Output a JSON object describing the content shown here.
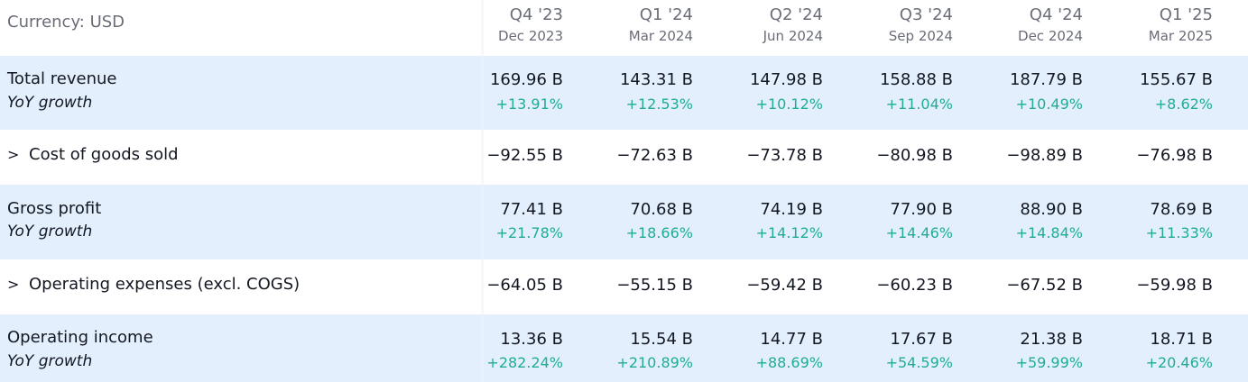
{
  "header": {
    "currency_label": "Currency: USD",
    "columns": [
      {
        "quarter": "Q4 '23",
        "date": "Dec 2023"
      },
      {
        "quarter": "Q1 '24",
        "date": "Mar 2024"
      },
      {
        "quarter": "Q2 '24",
        "date": "Jun 2024"
      },
      {
        "quarter": "Q3 '24",
        "date": "Sep 2024"
      },
      {
        "quarter": "Q4 '24",
        "date": "Dec 2024"
      },
      {
        "quarter": "Q1 '25",
        "date": "Mar 2025"
      }
    ]
  },
  "rows": {
    "total_revenue": {
      "label": "Total revenue",
      "sub_label": "YoY growth",
      "values": [
        "169.96 B",
        "143.31 B",
        "147.98 B",
        "158.88 B",
        "187.79 B",
        "155.67 B"
      ],
      "growth": [
        "+13.91%",
        "+12.53%",
        "+10.12%",
        "+11.04%",
        "+10.49%",
        "+8.62%"
      ]
    },
    "cogs": {
      "chevron": ">",
      "label": "Cost of goods sold",
      "values": [
        "−92.55 B",
        "−72.63 B",
        "−73.78 B",
        "−80.98 B",
        "−98.89 B",
        "−76.98 B"
      ]
    },
    "gross_profit": {
      "label": "Gross profit",
      "sub_label": "YoY growth",
      "values": [
        "77.41 B",
        "70.68 B",
        "74.19 B",
        "77.90 B",
        "88.90 B",
        "78.69 B"
      ],
      "growth": [
        "+21.78%",
        "+18.66%",
        "+14.12%",
        "+14.46%",
        "+14.84%",
        "+11.33%"
      ]
    },
    "opex": {
      "chevron": ">",
      "label": "Operating expenses (excl. COGS)",
      "values": [
        "−64.05 B",
        "−55.15 B",
        "−59.42 B",
        "−60.23 B",
        "−67.52 B",
        "−59.98 B"
      ]
    },
    "operating_income": {
      "label": "Operating income",
      "sub_label": "YoY growth",
      "values": [
        "13.36 B",
        "15.54 B",
        "14.77 B",
        "17.67 B",
        "21.38 B",
        "18.71 B"
      ],
      "growth": [
        "+282.24%",
        "+210.89%",
        "+88.69%",
        "+54.59%",
        "+59.99%",
        "+20.46%"
      ]
    }
  },
  "colors": {
    "highlight_row": "#e3effd",
    "growth_positive": "#22ab94",
    "header_text": "#6a6d78",
    "text": "#131722"
  }
}
